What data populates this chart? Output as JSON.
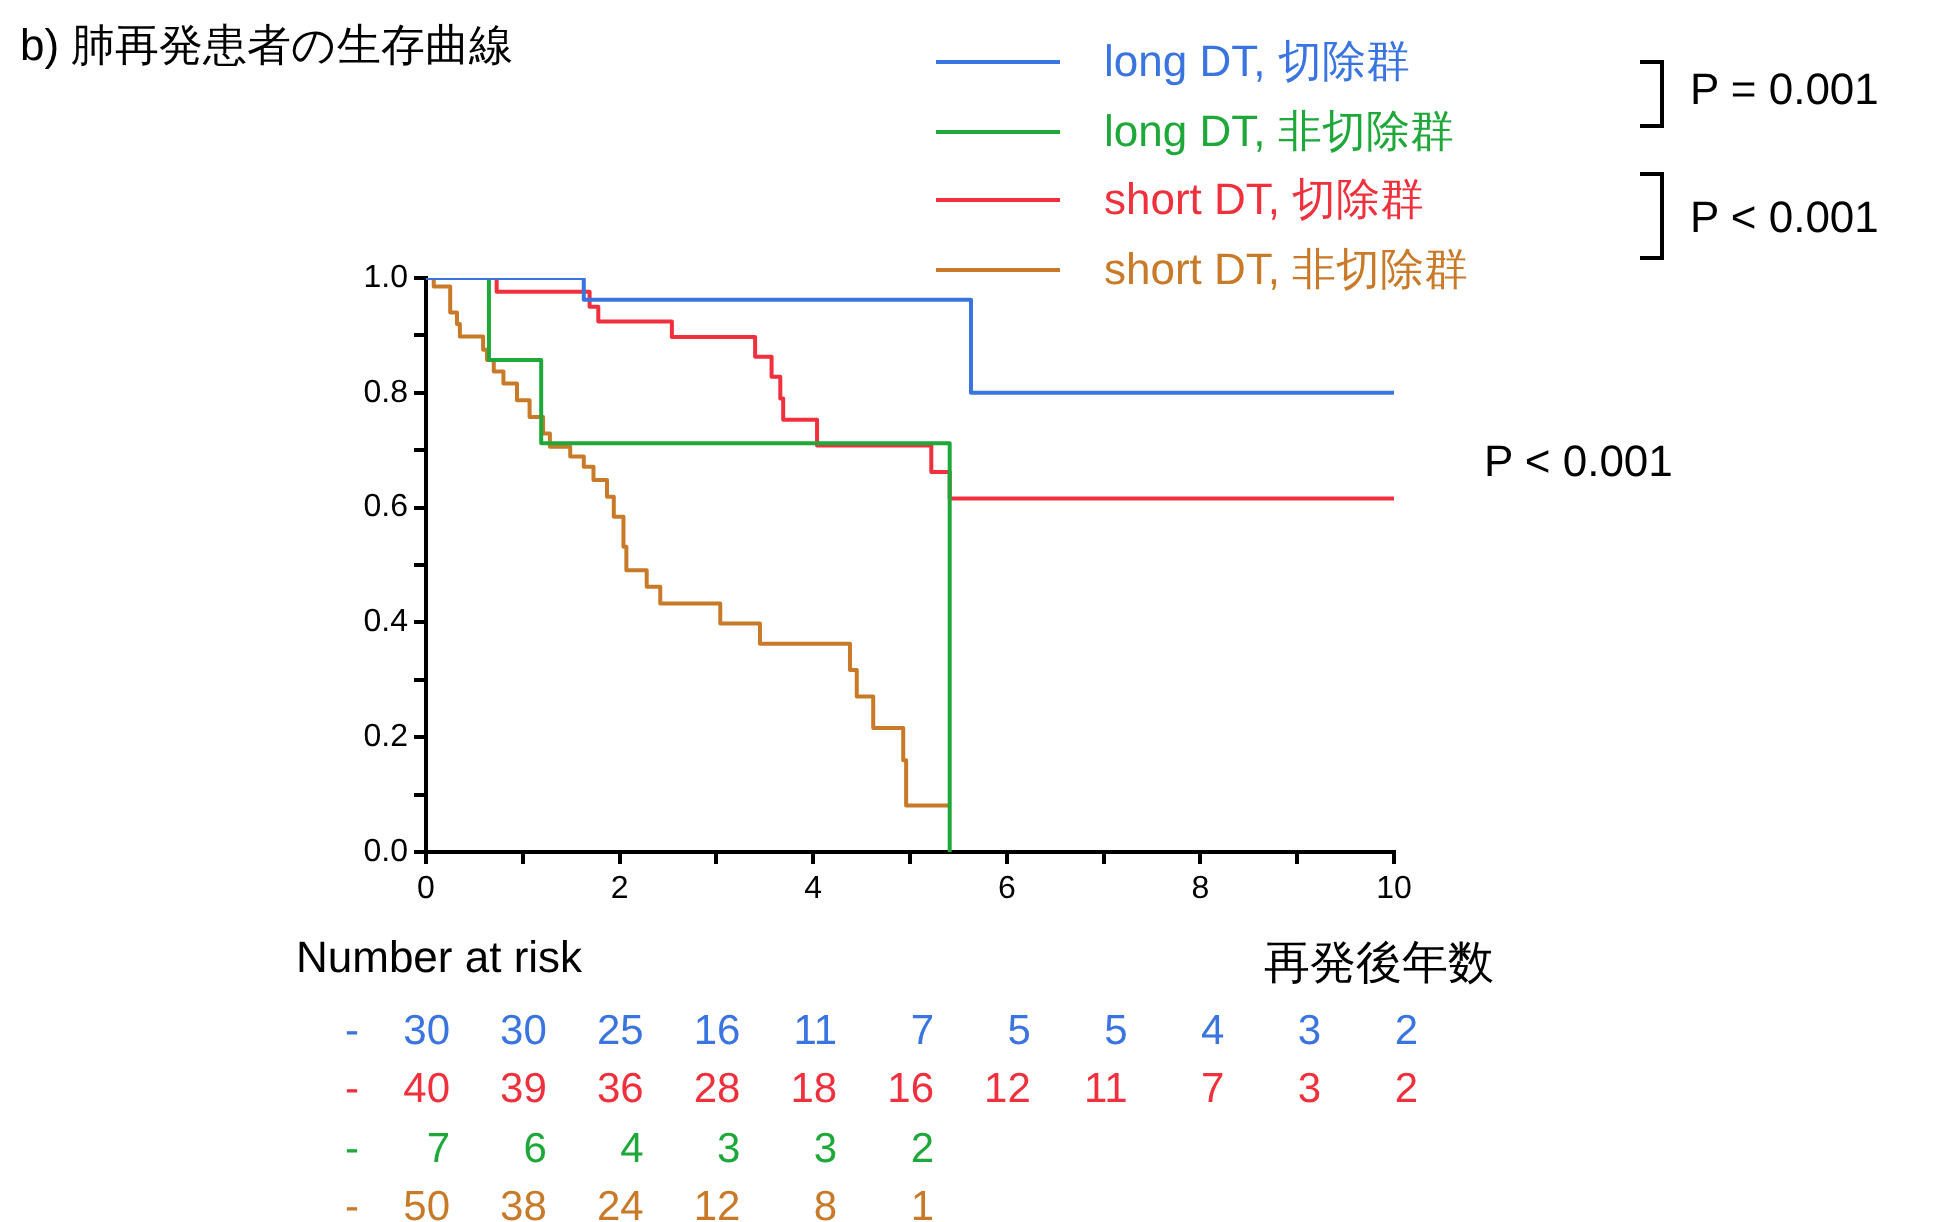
{
  "chart_data": {
    "type": "step",
    "title": "b) 肺再発患者の生存曲線",
    "xlabel": "再発後年数",
    "xlim": [
      0,
      10
    ],
    "ylim": [
      0,
      1
    ],
    "xticks": [
      0,
      {
        "value": 1,
        "label": null
      },
      2,
      {
        "value": 3,
        "label": null
      },
      4,
      {
        "value": 5,
        "label": null
      },
      6,
      {
        "value": 7,
        "label": null
      },
      8,
      {
        "value": 9,
        "label": null
      },
      10
    ],
    "yticks": [
      {
        "value": 0,
        "label": "0.0"
      },
      {
        "value": 0.1,
        "label": null
      },
      {
        "value": 0.2,
        "label": "0.2"
      },
      {
        "value": 0.3,
        "label": null
      },
      {
        "value": 0.4,
        "label": "0.4"
      },
      {
        "value": 0.5,
        "label": null
      },
      {
        "value": 0.6,
        "label": "0.6"
      },
      {
        "value": 0.7,
        "label": null
      },
      {
        "value": 0.8,
        "label": "0.8"
      },
      {
        "value": 0.9,
        "label": null
      },
      {
        "value": 1,
        "label": "1.0"
      }
    ],
    "grid": false,
    "legend": "top right",
    "line_style": "solid",
    "marker": "none",
    "series": [
      {
        "name": "long DT, 切除群",
        "color": "#3a74e0",
        "x": [
          0,
          1.63,
          5.63,
          10
        ],
        "values": [
          1,
          0.962,
          0.8,
          0.8
        ]
      },
      {
        "name": "long DT, 非切除群",
        "color": "#1fa83a",
        "x": [
          0,
          0.65,
          1.19,
          5.41
        ],
        "values": [
          1,
          0.857,
          0.712,
          0
        ]
      },
      {
        "name": "short DT, 切除群",
        "color": "#f0303c",
        "x": [
          0,
          0.73,
          1.69,
          1.78,
          2.54,
          3.4,
          3.57,
          3.66,
          3.69,
          4.04,
          5.22,
          5.41,
          10
        ],
        "values": [
          1,
          0.976,
          0.95,
          0.924,
          0.897,
          0.863,
          0.828,
          0.79,
          0.753,
          0.708,
          0.662,
          0.616,
          0.616
        ]
      },
      {
        "name": "short DT, 非切除群",
        "color": "#c97a28",
        "x": [
          0,
          0.08,
          0.25,
          0.32,
          0.35,
          0.59,
          0.63,
          0.7,
          0.8,
          0.94,
          1.07,
          1.21,
          1.28,
          1.49,
          1.63,
          1.73,
          1.87,
          1.94,
          2.04,
          2.07,
          2.28,
          2.42,
          3.04,
          3.45,
          4.38,
          4.45,
          4.62,
          4.93,
          4.96,
          5.4
        ],
        "values": [
          1,
          0.985,
          0.94,
          0.92,
          0.898,
          0.875,
          0.857,
          0.837,
          0.816,
          0.787,
          0.758,
          0.729,
          0.706,
          0.689,
          0.671,
          0.648,
          0.619,
          0.584,
          0.532,
          0.491,
          0.462,
          0.433,
          0.398,
          0.363,
          0.317,
          0.271,
          0.216,
          0.16,
          0.081,
          0.081
        ]
      }
    ],
    "annotations": [
      "P = 0.001",
      "P < 0.001",
      "P < 0.001",
      "Number at risk",
      "- 30 30 25 16 11 7 5 5 4 3 2",
      "- 40 39 36 28 18 16 12 11 7 3 2",
      "- 7 6 4 3 3 2",
      "- 50 38 24 12 8 1"
    ]
  }
}
